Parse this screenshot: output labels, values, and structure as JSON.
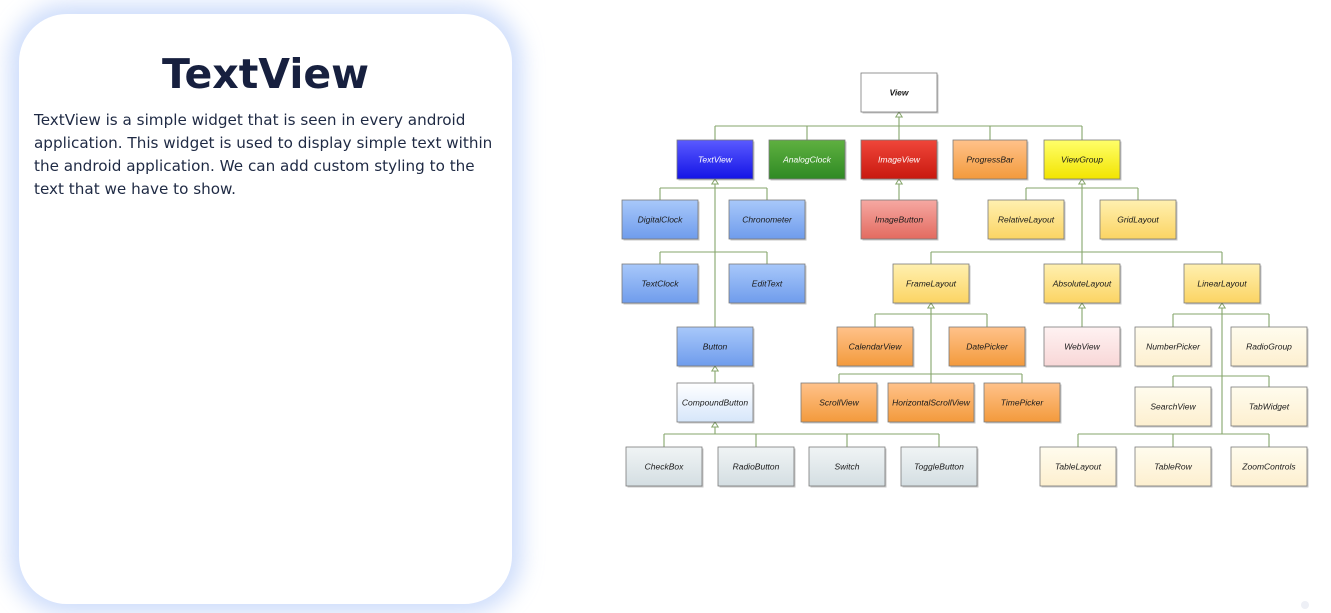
{
  "card": {
    "title": "TextView",
    "body": "TextView is a simple widget that is seen in every android application. This widget is used to display simple text within the android application. We can add custom styling to the text that we have to show."
  },
  "diagram": {
    "colors": {
      "connector": "#86a66b",
      "node_border": "#7a7a7a",
      "fills": {
        "white": [
          "#ffffff",
          "#ffffff"
        ],
        "blue": [
          "#5a5aff",
          "#1414e6"
        ],
        "green": [
          "#5fb040",
          "#2f8a24"
        ],
        "red": [
          "#f0463a",
          "#c8190f"
        ],
        "orange": [
          "#ffc28a",
          "#f39a3c"
        ],
        "yellow": [
          "#ffff6a",
          "#f2e400"
        ],
        "lightblue": [
          "#a8c8fa",
          "#6f9cec"
        ],
        "pink": [
          "#f6a8a2",
          "#e36b60"
        ],
        "ltyellow": [
          "#fff0b0",
          "#fbd463"
        ],
        "palepink": [
          "#fff2f2",
          "#f8d7d7"
        ],
        "cream": [
          "#fffcee",
          "#fdefcf"
        ],
        "paleblue": [
          "#ffffff",
          "#d6e6fa"
        ],
        "gray": [
          "#f0f4f5",
          "#d4dee2"
        ]
      }
    },
    "nodes": [
      {
        "id": "view",
        "label": "View",
        "fill": "white",
        "text": "dark"
      },
      {
        "id": "textview",
        "label": "TextView",
        "fill": "blue",
        "text": "light"
      },
      {
        "id": "analogclock",
        "label": "AnalogClock",
        "fill": "green",
        "text": "light"
      },
      {
        "id": "imageview",
        "label": "ImageView",
        "fill": "red",
        "text": "light"
      },
      {
        "id": "progressbar",
        "label": "ProgressBar",
        "fill": "orange",
        "text": "dark"
      },
      {
        "id": "viewgroup",
        "label": "ViewGroup",
        "fill": "yellow",
        "text": "dark"
      },
      {
        "id": "digitalclock",
        "label": "DigitalClock",
        "fill": "lightblue",
        "text": "dark"
      },
      {
        "id": "chronometer",
        "label": "Chronometer",
        "fill": "lightblue",
        "text": "dark"
      },
      {
        "id": "textclock",
        "label": "TextClock",
        "fill": "lightblue",
        "text": "dark"
      },
      {
        "id": "edittext",
        "label": "EditText",
        "fill": "lightblue",
        "text": "dark"
      },
      {
        "id": "button",
        "label": "Button",
        "fill": "lightblue",
        "text": "dark"
      },
      {
        "id": "compoundbutton",
        "label": "CompoundButton",
        "fill": "paleblue",
        "text": "dark"
      },
      {
        "id": "checkbox",
        "label": "CheckBox",
        "fill": "gray",
        "text": "dark"
      },
      {
        "id": "radiobutton",
        "label": "RadioButton",
        "fill": "gray",
        "text": "dark"
      },
      {
        "id": "switch",
        "label": "Switch",
        "fill": "gray",
        "text": "dark"
      },
      {
        "id": "togglebutton",
        "label": "ToggleButton",
        "fill": "gray",
        "text": "dark"
      },
      {
        "id": "imagebutton",
        "label": "ImageButton",
        "fill": "pink",
        "text": "dark"
      },
      {
        "id": "relativelayout",
        "label": "RelativeLayout",
        "fill": "ltyellow",
        "text": "dark"
      },
      {
        "id": "gridlayout",
        "label": "GridLayout",
        "fill": "ltyellow",
        "text": "dark"
      },
      {
        "id": "framelayout",
        "label": "FrameLayout",
        "fill": "ltyellow",
        "text": "dark"
      },
      {
        "id": "absolutelayout",
        "label": "AbsoluteLayout",
        "fill": "ltyellow",
        "text": "dark"
      },
      {
        "id": "linearlayout",
        "label": "LinearLayout",
        "fill": "ltyellow",
        "text": "dark"
      },
      {
        "id": "calendarview",
        "label": "CalendarView",
        "fill": "orange",
        "text": "dark"
      },
      {
        "id": "datepicker",
        "label": "DatePicker",
        "fill": "orange",
        "text": "dark"
      },
      {
        "id": "scrollview",
        "label": "ScrollView",
        "fill": "orange",
        "text": "dark"
      },
      {
        "id": "horizontalscrollview",
        "label": "HorizontalScrollView",
        "fill": "orange",
        "text": "dark"
      },
      {
        "id": "timepicker",
        "label": "TimePicker",
        "fill": "orange",
        "text": "dark"
      },
      {
        "id": "webview",
        "label": "WebView",
        "fill": "palepink",
        "text": "dark"
      },
      {
        "id": "numberpicker",
        "label": "NumberPicker",
        "fill": "cream",
        "text": "dark"
      },
      {
        "id": "radiogroup",
        "label": "RadioGroup",
        "fill": "cream",
        "text": "dark"
      },
      {
        "id": "searchview",
        "label": "SearchView",
        "fill": "cream",
        "text": "dark"
      },
      {
        "id": "tabwidget",
        "label": "TabWidget",
        "fill": "cream",
        "text": "dark"
      },
      {
        "id": "tablelayout",
        "label": "TableLayout",
        "fill": "cream",
        "text": "dark"
      },
      {
        "id": "tablerow",
        "label": "TableRow",
        "fill": "cream",
        "text": "dark"
      },
      {
        "id": "zoomcontrols",
        "label": "ZoomControls",
        "fill": "cream",
        "text": "dark"
      }
    ],
    "edges": [
      [
        "textview",
        "view"
      ],
      [
        "analogclock",
        "view"
      ],
      [
        "imageview",
        "view"
      ],
      [
        "progressbar",
        "view"
      ],
      [
        "viewgroup",
        "view"
      ],
      [
        "digitalclock",
        "textview"
      ],
      [
        "chronometer",
        "textview"
      ],
      [
        "textclock",
        "textview"
      ],
      [
        "edittext",
        "textview"
      ],
      [
        "button",
        "textview"
      ],
      [
        "compoundbutton",
        "button"
      ],
      [
        "checkbox",
        "compoundbutton"
      ],
      [
        "radiobutton",
        "compoundbutton"
      ],
      [
        "switch",
        "compoundbutton"
      ],
      [
        "togglebutton",
        "compoundbutton"
      ],
      [
        "imagebutton",
        "imageview"
      ],
      [
        "relativelayout",
        "viewgroup"
      ],
      [
        "gridlayout",
        "viewgroup"
      ],
      [
        "framelayout",
        "viewgroup"
      ],
      [
        "absolutelayout",
        "viewgroup"
      ],
      [
        "linearlayout",
        "viewgroup"
      ],
      [
        "calendarview",
        "framelayout"
      ],
      [
        "datepicker",
        "framelayout"
      ],
      [
        "scrollview",
        "framelayout"
      ],
      [
        "horizontalscrollview",
        "framelayout"
      ],
      [
        "timepicker",
        "framelayout"
      ],
      [
        "webview",
        "absolutelayout"
      ],
      [
        "numberpicker",
        "linearlayout"
      ],
      [
        "radiogroup",
        "linearlayout"
      ],
      [
        "searchview",
        "linearlayout"
      ],
      [
        "tabwidget",
        "linearlayout"
      ],
      [
        "tablelayout",
        "linearlayout"
      ],
      [
        "tablerow",
        "linearlayout"
      ],
      [
        "zoomcontrols",
        "linearlayout"
      ]
    ]
  }
}
